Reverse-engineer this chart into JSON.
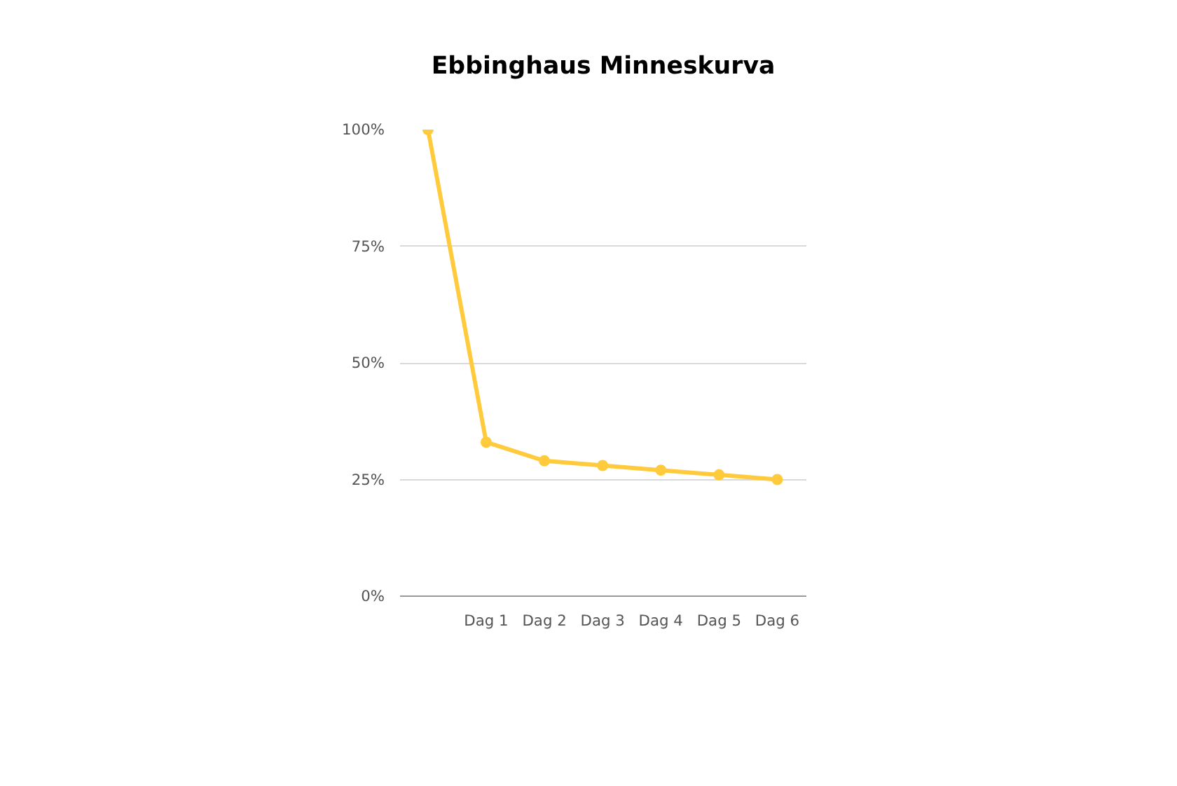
{
  "chart_data": {
    "type": "line",
    "title": "Ebbinghaus Minneskurva",
    "categories": [
      null,
      "Dag 1",
      "Dag 2",
      "Dag 3",
      "Dag 4",
      "Dag 5",
      "Dag 6"
    ],
    "series": [
      {
        "color": "#ffcb3d",
        "values": [
          100,
          33,
          29,
          28,
          27,
          26,
          25
        ]
      }
    ],
    "ylim": [
      0,
      100
    ],
    "yticks": [
      {
        "value": 0,
        "label": "0%"
      },
      {
        "value": 25,
        "label": "25%"
      },
      {
        "value": 50,
        "label": "50%"
      },
      {
        "value": 75,
        "label": "75%"
      },
      {
        "value": 100,
        "label": "100%"
      }
    ],
    "grid": "y",
    "marker": "circle"
  }
}
